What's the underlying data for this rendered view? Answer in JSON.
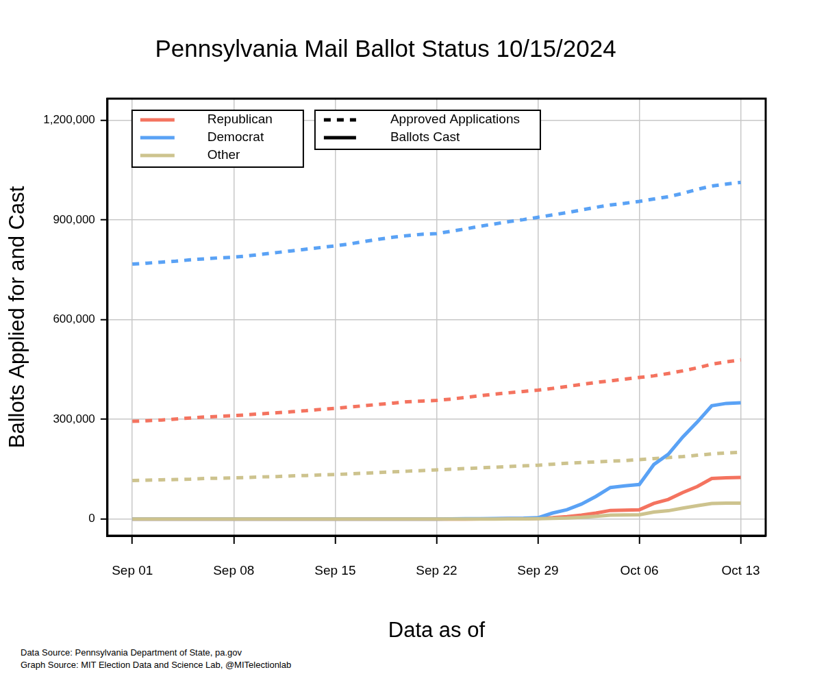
{
  "chart_data": {
    "type": "line",
    "title": "Pennsylvania Mail Ballot Status 10/15/2024",
    "x_label": "Data as of",
    "y_label": "Ballots Applied for and Cast",
    "notes": [
      "Data Source: Pennsylvania Department of State, pa.gov",
      "Graph Source: MIT Election Data and Science Lab, @MITelectionlab"
    ],
    "categories": [
      "Sep 01",
      null,
      null,
      null,
      null,
      null,
      null,
      "Sep 08",
      null,
      null,
      null,
      null,
      null,
      null,
      "Sep 15",
      null,
      null,
      null,
      null,
      null,
      null,
      "Sep 22",
      null,
      null,
      null,
      null,
      null,
      null,
      "Sep 29",
      null,
      null,
      null,
      null,
      null,
      null,
      "Oct 06",
      null,
      null,
      null,
      null,
      null,
      null,
      "Oct 13"
    ],
    "ylim": [
      -50000,
      1265000
    ],
    "yticks": [
      0,
      {
        "value": 300000,
        "label": "300,000"
      },
      {
        "value": 600000,
        "label": "600,000"
      },
      {
        "value": 900000,
        "label": "900,000"
      },
      {
        "value": 1200000,
        "label": "1,200,000"
      }
    ],
    "grid": true,
    "legend": "top-left",
    "line_style_key": [
      {
        "label": "Approved Applications",
        "line_style": "dashed"
      },
      {
        "label": "Ballots Cast",
        "line_style": "solid"
      }
    ],
    "series": [
      {
        "name": "Republican",
        "color": "#f4735f",
        "line_style": "dashed",
        "values": [
          294000,
          296000,
          298000,
          301000,
          304000,
          307000,
          309000,
          311000,
          314000,
          317000,
          320000,
          323000,
          326000,
          330000,
          333000,
          337000,
          341000,
          345000,
          349000,
          353000,
          355000,
          357000,
          361000,
          366000,
          371000,
          376000,
          380000,
          384000,
          388000,
          393000,
          399000,
          405000,
          411000,
          416000,
          421000,
          426000,
          431000,
          438000,
          446000,
          455000,
          466000,
          473000,
          479000
        ]
      },
      {
        "name": "Democrat",
        "color": "#5aa2f5",
        "line_style": "dashed",
        "values": [
          767000,
          770000,
          773000,
          776000,
          780000,
          783000,
          786000,
          788000,
          792000,
          797000,
          802000,
          807000,
          812000,
          817000,
          822000,
          828000,
          835000,
          842000,
          848000,
          853000,
          857000,
          859000,
          866000,
          873000,
          881000,
          888000,
          895000,
          901000,
          908000,
          915000,
          922000,
          930000,
          938000,
          945000,
          950000,
          956000,
          963000,
          970000,
          980000,
          992000,
          1002000,
          1008000,
          1013000
        ]
      },
      {
        "name": "Other",
        "color": "#cdc38e",
        "line_style": "dashed",
        "values": [
          116000,
          117000,
          118000,
          119000,
          120000,
          122000,
          123000,
          124000,
          125000,
          127000,
          128000,
          130000,
          131000,
          133000,
          134000,
          136000,
          138000,
          140000,
          142000,
          144000,
          146000,
          148000,
          150000,
          152000,
          154000,
          156000,
          158000,
          160000,
          162000,
          165000,
          168000,
          170000,
          172000,
          174000,
          176000,
          179000,
          182000,
          185000,
          188000,
          192000,
          196000,
          199000,
          201000
        ]
      },
      {
        "name": "Republican",
        "color": "#f4735f",
        "line_style": "solid",
        "values": [
          0,
          0,
          0,
          0,
          0,
          0,
          0,
          0,
          0,
          0,
          0,
          0,
          0,
          0,
          0,
          0,
          0,
          0,
          0,
          0,
          0,
          0,
          0,
          0,
          300,
          500,
          800,
          1200,
          2000,
          4000,
          7000,
          12000,
          18000,
          26000,
          27000,
          28000,
          47000,
          59000,
          80000,
          98000,
          122000,
          124000,
          125000
        ]
      },
      {
        "name": "Democrat",
        "color": "#5aa2f5",
        "line_style": "solid",
        "values": [
          0,
          0,
          0,
          0,
          0,
          0,
          0,
          0,
          0,
          0,
          0,
          0,
          0,
          0,
          0,
          0,
          0,
          0,
          0,
          0,
          0,
          0,
          500,
          800,
          1000,
          1500,
          2000,
          2500,
          4000,
          18000,
          28000,
          45000,
          68000,
          95000,
          100000,
          104000,
          164000,
          195000,
          247000,
          292000,
          341000,
          348000,
          350000
        ]
      },
      {
        "name": "Other",
        "color": "#cdc38e",
        "line_style": "solid",
        "values": [
          0,
          0,
          0,
          0,
          0,
          0,
          0,
          0,
          0,
          0,
          0,
          0,
          0,
          0,
          0,
          0,
          0,
          0,
          0,
          0,
          0,
          0,
          0,
          0,
          0,
          200,
          400,
          600,
          1000,
          2000,
          3000,
          5000,
          8000,
          12000,
          12500,
          13000,
          21000,
          25000,
          33000,
          40000,
          47000,
          48000,
          48000
        ]
      }
    ]
  }
}
